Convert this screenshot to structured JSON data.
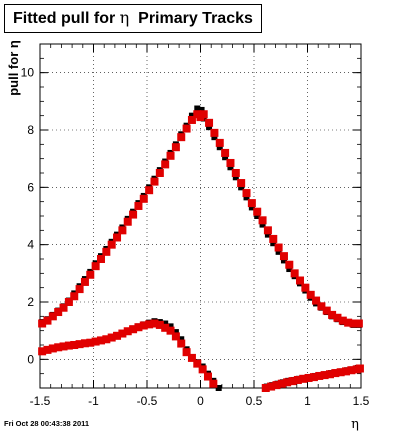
{
  "chart_data": {
    "type": "scatter",
    "title": "Fitted pull for",
    "title_symbol": "η",
    "title_suffix": "Primary Tracks",
    "ylabel": "pull for η",
    "xlabel": "η",
    "xlim": [
      -1.5,
      1.5
    ],
    "ylim": [
      -1.0,
      11.0
    ],
    "xticks": [
      "-1.5",
      "-1",
      "-0.5",
      "0",
      "0.5",
      "1",
      "1.5"
    ],
    "xtick_values": [
      -1.5,
      -1,
      -0.5,
      0,
      0.5,
      1,
      1.5
    ],
    "yticks": [
      "0",
      "2",
      "4",
      "6",
      "8",
      "10"
    ],
    "ytick_values": [
      0,
      2,
      4,
      6,
      8,
      10
    ],
    "grid": true,
    "series": [
      {
        "color": "#000000",
        "marker": "square-small",
        "x": [
          -1.48,
          -1.43,
          -1.38,
          -1.33,
          -1.28,
          -1.23,
          -1.18,
          -1.13,
          -1.08,
          -1.03,
          -0.98,
          -0.93,
          -0.88,
          -0.83,
          -0.78,
          -0.73,
          -0.68,
          -0.63,
          -0.58,
          -0.53,
          -0.48,
          -0.43,
          -0.38,
          -0.33,
          -0.28,
          -0.23,
          -0.18,
          -0.13,
          -0.08,
          -0.03,
          0.01,
          0.03,
          0.08,
          0.13,
          0.18,
          0.23,
          0.28,
          0.33,
          0.38,
          0.43,
          0.48,
          0.53,
          0.58,
          0.63,
          0.68,
          0.73,
          0.78,
          0.83,
          0.88,
          0.93,
          0.98,
          1.03,
          1.08,
          1.13,
          1.18,
          1.23,
          1.28,
          1.33,
          1.38,
          1.43,
          1.48
        ],
        "y": [
          1.3,
          1.4,
          1.55,
          1.7,
          1.85,
          2.05,
          2.3,
          2.55,
          2.8,
          3.05,
          3.35,
          3.6,
          3.85,
          4.1,
          4.35,
          4.6,
          4.9,
          5.15,
          5.45,
          5.7,
          6.0,
          6.3,
          6.6,
          6.9,
          7.2,
          7.5,
          7.85,
          8.15,
          8.5,
          8.75,
          8.7,
          8.4,
          8.1,
          7.75,
          7.4,
          7.05,
          6.7,
          6.35,
          6.0,
          5.65,
          5.3,
          5.0,
          4.7,
          4.35,
          4.05,
          3.75,
          3.45,
          3.15,
          2.9,
          2.65,
          2.4,
          2.15,
          1.95,
          1.8,
          1.65,
          1.5,
          1.4,
          1.3,
          1.25,
          1.2,
          1.2
        ]
      },
      {
        "color": "#e00000",
        "marker": "square",
        "x": [
          -1.48,
          -1.43,
          -1.38,
          -1.33,
          -1.28,
          -1.23,
          -1.18,
          -1.13,
          -1.08,
          -1.03,
          -0.98,
          -0.93,
          -0.88,
          -0.83,
          -0.78,
          -0.73,
          -0.68,
          -0.63,
          -0.58,
          -0.53,
          -0.48,
          -0.43,
          -0.38,
          -0.33,
          -0.28,
          -0.23,
          -0.18,
          -0.13,
          -0.08,
          -0.03,
          0.0,
          0.03,
          0.08,
          0.13,
          0.18,
          0.23,
          0.28,
          0.33,
          0.38,
          0.43,
          0.48,
          0.53,
          0.58,
          0.63,
          0.68,
          0.73,
          0.78,
          0.83,
          0.88,
          0.93,
          0.98,
          1.03,
          1.08,
          1.13,
          1.18,
          1.23,
          1.28,
          1.33,
          1.38,
          1.43,
          1.48
        ],
        "y": [
          1.25,
          1.35,
          1.5,
          1.65,
          1.8,
          2.0,
          2.2,
          2.45,
          2.7,
          2.95,
          3.25,
          3.5,
          3.75,
          4.0,
          4.25,
          4.5,
          4.8,
          5.05,
          5.35,
          5.6,
          5.9,
          6.2,
          6.5,
          6.8,
          7.1,
          7.4,
          7.75,
          8.05,
          8.35,
          8.55,
          8.45,
          8.55,
          8.25,
          7.9,
          7.55,
          7.2,
          6.85,
          6.5,
          6.15,
          5.8,
          5.45,
          5.15,
          4.85,
          4.5,
          4.2,
          3.9,
          3.6,
          3.3,
          3.0,
          2.75,
          2.5,
          2.25,
          2.05,
          1.85,
          1.7,
          1.55,
          1.45,
          1.35,
          1.28,
          1.25,
          1.25
        ]
      },
      {
        "color": "#000000",
        "marker": "square-small",
        "x": [
          -1.48,
          -1.43,
          -1.38,
          -1.33,
          -1.28,
          -1.23,
          -1.18,
          -1.13,
          -1.08,
          -1.03,
          -0.98,
          -0.93,
          -0.88,
          -0.83,
          -0.78,
          -0.73,
          -0.68,
          -0.63,
          -0.58,
          -0.53,
          -0.48,
          -0.43,
          -0.38,
          -0.33,
          -0.28,
          -0.23,
          -0.18,
          -0.13,
          -0.08,
          -0.03,
          0.02,
          0.07,
          0.12,
          0.17
        ],
        "y": [
          0.3,
          0.35,
          0.4,
          0.43,
          0.46,
          0.5,
          0.52,
          0.55,
          0.58,
          0.6,
          0.63,
          0.68,
          0.72,
          0.78,
          0.85,
          0.92,
          1.0,
          1.08,
          1.15,
          1.22,
          1.28,
          1.33,
          1.3,
          1.25,
          1.15,
          0.95,
          0.7,
          0.35,
          0.05,
          -0.1,
          -0.25,
          -0.5,
          -0.75,
          -1.0
        ]
      },
      {
        "color": "#e00000",
        "marker": "square",
        "x": [
          -1.48,
          -1.43,
          -1.38,
          -1.33,
          -1.28,
          -1.23,
          -1.18,
          -1.13,
          -1.08,
          -1.03,
          -0.98,
          -0.93,
          -0.88,
          -0.83,
          -0.78,
          -0.73,
          -0.68,
          -0.63,
          -0.58,
          -0.53,
          -0.48,
          -0.43,
          -0.38,
          -0.33,
          -0.28,
          -0.23,
          -0.18,
          -0.13,
          -0.08,
          -0.03,
          0.02,
          0.07,
          0.12
        ],
        "y": [
          0.28,
          0.33,
          0.38,
          0.42,
          0.45,
          0.48,
          0.5,
          0.53,
          0.56,
          0.58,
          0.62,
          0.66,
          0.7,
          0.76,
          0.82,
          0.9,
          0.98,
          1.05,
          1.12,
          1.18,
          1.22,
          1.25,
          1.2,
          1.1,
          1.0,
          0.8,
          0.55,
          0.25,
          0.05,
          -0.15,
          -0.35,
          -0.6,
          -0.85
        ]
      },
      {
        "color": "#000000",
        "marker": "square-small",
        "x": [
          0.62,
          0.67,
          0.72,
          0.77,
          0.82,
          0.87,
          0.92,
          0.97,
          1.02,
          1.07,
          1.12,
          1.17,
          1.22,
          1.27,
          1.32,
          1.37,
          1.42,
          1.47
        ],
        "y": [
          -0.95,
          -0.9,
          -0.85,
          -0.8,
          -0.75,
          -0.72,
          -0.68,
          -0.65,
          -0.62,
          -0.58,
          -0.55,
          -0.52,
          -0.48,
          -0.45,
          -0.42,
          -0.38,
          -0.35,
          -0.3
        ]
      },
      {
        "color": "#e00000",
        "marker": "square",
        "x": [
          0.61,
          0.66,
          0.71,
          0.76,
          0.81,
          0.86,
          0.91,
          0.96,
          1.01,
          1.06,
          1.11,
          1.16,
          1.21,
          1.26,
          1.31,
          1.36,
          1.41,
          1.46,
          1.49
        ],
        "y": [
          -1.0,
          -0.95,
          -0.9,
          -0.85,
          -0.8,
          -0.76,
          -0.72,
          -0.68,
          -0.65,
          -0.62,
          -0.58,
          -0.55,
          -0.52,
          -0.48,
          -0.45,
          -0.42,
          -0.38,
          -0.35,
          -0.32
        ]
      }
    ]
  },
  "footer": "Fri Oct 28 00:43:38 2011"
}
